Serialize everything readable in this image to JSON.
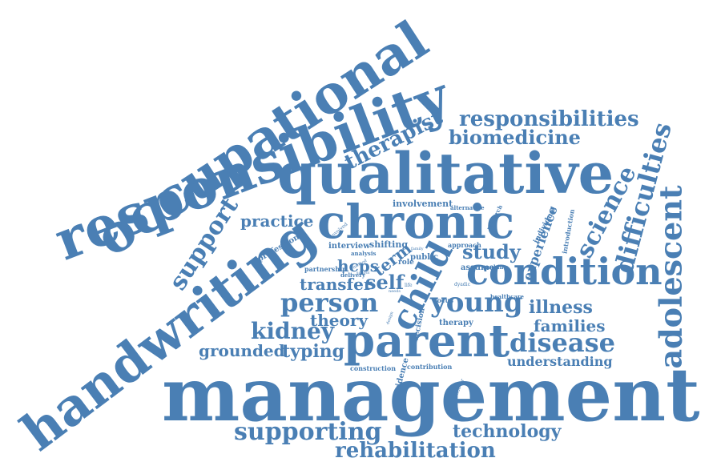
{
  "word_cloud": {
    "color": "#4a7fb4",
    "words": [
      "occupational",
      "responsibility",
      "handwriting",
      "qualitative",
      "chronic",
      "condition",
      "management",
      "parent",
      "child",
      "young",
      "adolescent",
      "difficulties",
      "science",
      "responsibilities",
      "biomedicine",
      "therapist",
      "support",
      "practice",
      "person",
      "kidney",
      "self",
      "study",
      "illness",
      "families",
      "disease",
      "theory",
      "grounded",
      "typing",
      "transfer",
      "hcps",
      "term",
      "supporting",
      "rehabilitation",
      "technology",
      "understanding",
      "experience",
      "involvement",
      "professional",
      "interview",
      "partnership",
      "shifting",
      "analysis",
      "delivery",
      "public",
      "role",
      "approach",
      "assume",
      "making",
      "focus",
      "healthcare",
      "construction",
      "contribution",
      "evidence",
      "decision",
      "therapy",
      "individual",
      "introduction",
      "research",
      "alternative",
      "method",
      "involved",
      "school",
      "life",
      "dyadic",
      "design",
      "landover",
      "family",
      "needs"
    ]
  }
}
